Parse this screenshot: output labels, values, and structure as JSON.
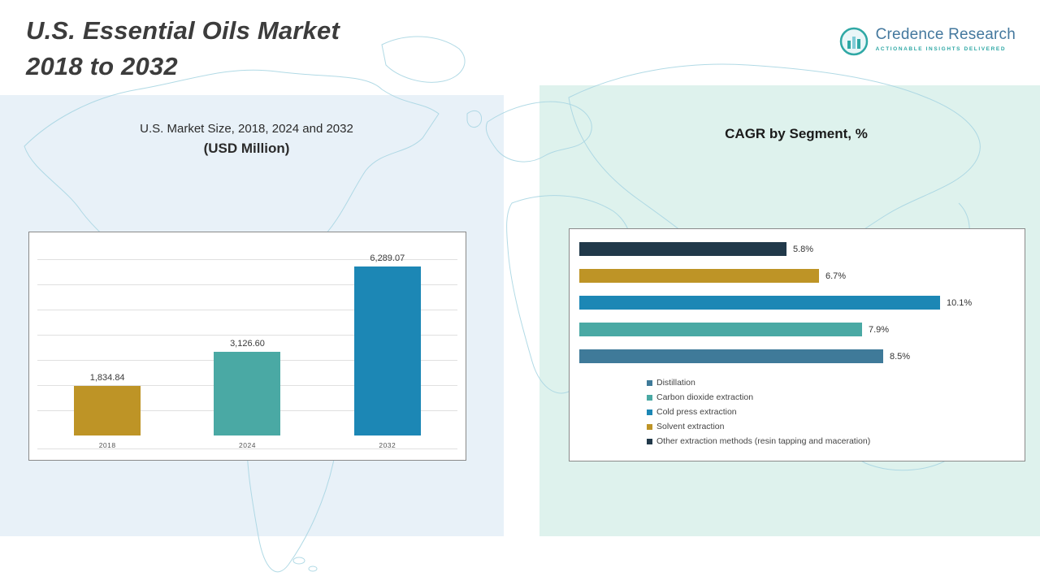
{
  "header": {
    "title_line1": "U.S. Essential Oils Market",
    "title_line2": "2018 to 2032",
    "logo": {
      "name": "Credence Research",
      "tagline": "Actionable Insights Delivered"
    }
  },
  "colors": {
    "gold": "#BE9426",
    "teal": "#4AA9A4",
    "blue": "#1C87B5",
    "navy": "#21394A",
    "steel": "#3F7A99",
    "panel_left": "#E8F1F8",
    "panel_right": "#DEF2ED",
    "map_line": "#A9D6E3"
  },
  "chart_data": [
    {
      "type": "bar",
      "title_line1": "U.S. Market Size, 2018, 2024 and 2032",
      "title_line2": "(USD Million)",
      "categories": [
        "2018",
        "2024",
        "2032"
      ],
      "values": [
        1834.84,
        3126.6,
        6289.07
      ],
      "value_labels": [
        "1,834.84",
        "3,126.60",
        "6,289.07"
      ],
      "bar_colors": [
        "#BE9426",
        "#4AA9A4",
        "#1C87B5"
      ],
      "ylim": [
        0,
        6500
      ],
      "grid": true,
      "legend_position": "none"
    },
    {
      "type": "bar",
      "orientation": "horizontal",
      "title": "CAGR by Segment, %",
      "bars": [
        {
          "label": "Other extraction methods (resin tapping and maceration)",
          "value": 5.8,
          "value_label": "5.8%",
          "color": "#21394A"
        },
        {
          "label": "Solvent extraction",
          "value": 6.7,
          "value_label": "6.7%",
          "color": "#BE9426"
        },
        {
          "label": "Cold press extraction",
          "value": 10.1,
          "value_label": "10.1%",
          "color": "#1C87B5"
        },
        {
          "label": "Carbon dioxide extraction",
          "value": 7.9,
          "value_label": "7.9%",
          "color": "#4AA9A4"
        },
        {
          "label": "Distillation",
          "value": 8.5,
          "value_label": "8.5%",
          "color": "#3F7A99"
        }
      ],
      "legend": [
        {
          "label": "Distillation",
          "color": "#3F7A99"
        },
        {
          "label": "Carbon dioxide extraction",
          "color": "#4AA9A4"
        },
        {
          "label": "Cold press extraction",
          "color": "#1C87B5"
        },
        {
          "label": "Solvent extraction",
          "color": "#BE9426"
        },
        {
          "label": "Other extraction methods (resin tapping and maceration)",
          "color": "#21394A"
        }
      ],
      "xlim": [
        0,
        11
      ],
      "legend_position": "bottom"
    }
  ]
}
